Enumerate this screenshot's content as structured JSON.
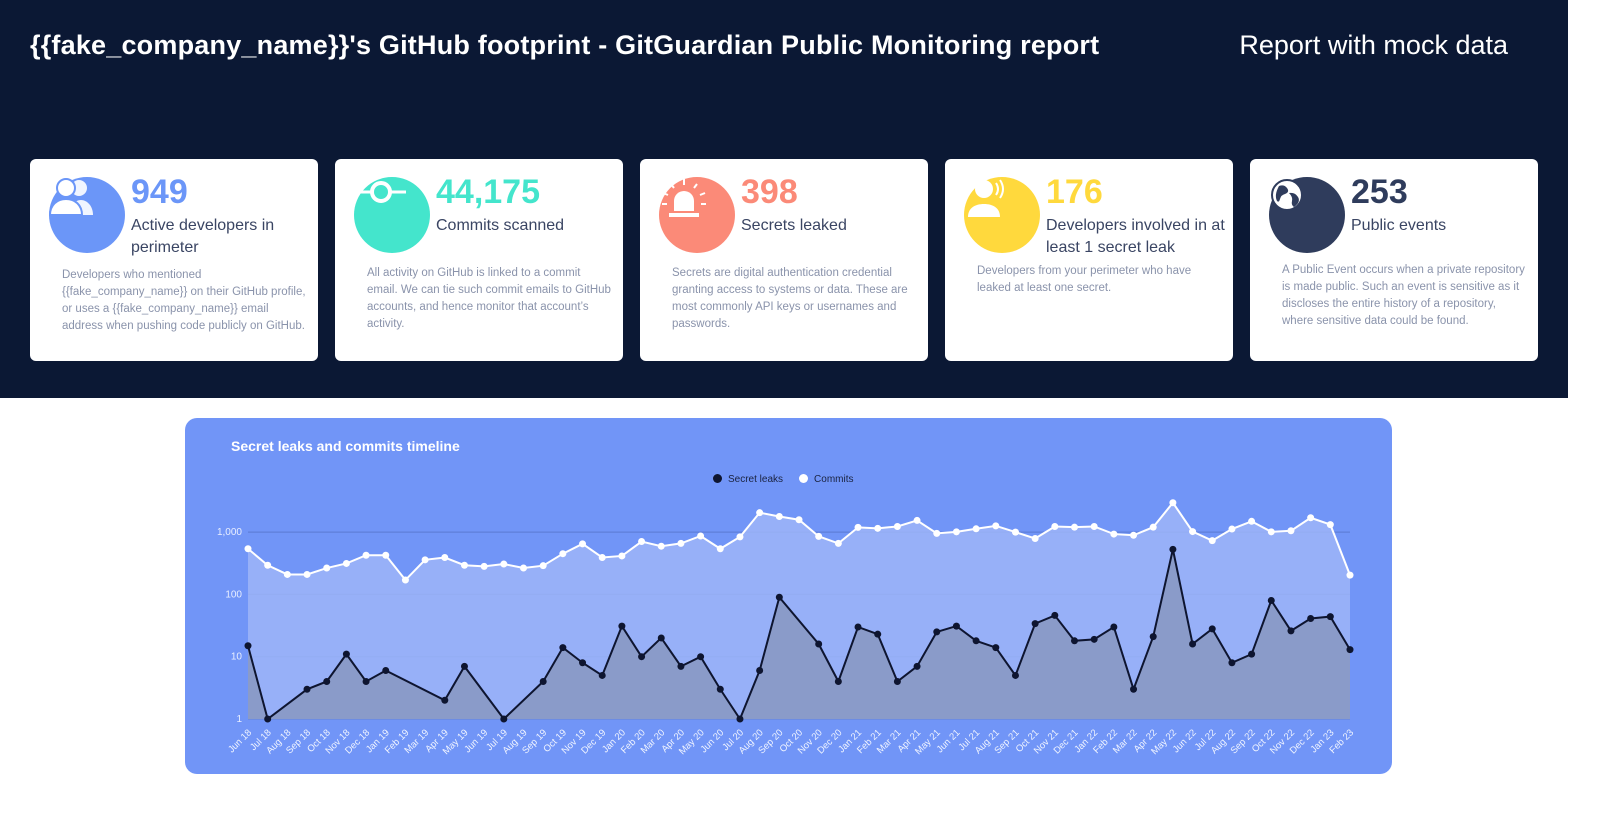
{
  "header": {
    "title": "{{fake_company_name}}'s GitHub footprint - GitGuardian Public Monitoring report",
    "subtitle": "Report with mock data"
  },
  "cards": [
    {
      "icon": "users-icon",
      "color": "#6b96f8",
      "value": "949",
      "label": "Active developers in perimeter",
      "description": "Developers who mentioned {{fake_company_name}} on their GitHub profile, or uses a {{fake_company_name}} email address when pushing code publicly on GitHub."
    },
    {
      "icon": "commit-icon",
      "color": "#44e5cc",
      "value": "44,175",
      "label": "Commits scanned",
      "description": "All activity on GitHub is linked to a commit email. We can tie such commit emails to GitHub accounts, and hence monitor that account’s activity."
    },
    {
      "icon": "alarm-icon",
      "color": "#fb8a78",
      "value": "398",
      "label": "Secrets leaked",
      "description": "Secrets are digital authentication credential granting access to systems or data. These are most commonly API keys or usernames and passwords."
    },
    {
      "icon": "developer-alert-icon",
      "color": "#ffd93d",
      "value": "176",
      "label": "Developers involved in at least 1 secret leak",
      "description": "Developers from your perimeter who have leaked at least one secret."
    },
    {
      "icon": "globe-icon",
      "color": "#2f3c5c",
      "value": "253",
      "label": "Public events",
      "description": "A Public Event occurs when a private repository is made public. Such an event is sensitive as it discloses the entire history of a repository, where sensitive data could be found."
    }
  ],
  "chart_data": {
    "type": "area",
    "title": "Secret leaks and commits timeline",
    "y_scale": "log",
    "ylim": [
      1,
      3000
    ],
    "y_ticks": [
      "1",
      "10",
      "100",
      "1,000"
    ],
    "legend_position": "top",
    "grid": true,
    "categories": [
      "Jun 18",
      "Jul 18",
      "Aug 18",
      "Sep 18",
      "Oct 18",
      "Nov 18",
      "Dec 18",
      "Jan 19",
      "Feb 19",
      "Mar 19",
      "Apr 19",
      "May 19",
      "Jun 19",
      "Jul 19",
      "Aug 19",
      "Sep 19",
      "Oct 19",
      "Nov 19",
      "Dec 19",
      "Jan 20",
      "Feb 20",
      "Mar 20",
      "Apr 20",
      "May 20",
      "Jun 20",
      "Jul 20",
      "Aug 20",
      "Sep 20",
      "Oct 20",
      "Nov 20",
      "Dec 20",
      "Jan 21",
      "Feb 21",
      "Mar 21",
      "Apr 21",
      "May 21",
      "Jun 21",
      "Jul 21",
      "Aug 21",
      "Sep 21",
      "Oct 21",
      "Nov 21",
      "Dec 21",
      "Jan 22",
      "Feb 22",
      "Mar 22",
      "Apr 22",
      "May 22",
      "Jun 22",
      "Jul 22",
      "Aug 22",
      "Sep 22",
      "Oct 22",
      "Nov 22",
      "Dec 22",
      "Jan 23",
      "Feb 23"
    ],
    "series": [
      {
        "name": "Secret leaks",
        "color": "#0e1530",
        "values": [
          15,
          1,
          null,
          3,
          4,
          11,
          4,
          6,
          null,
          null,
          2,
          7,
          null,
          1,
          null,
          4,
          14,
          8,
          5,
          31,
          10,
          20,
          7,
          10,
          3,
          1,
          6,
          90,
          null,
          16,
          4,
          30,
          23,
          4,
          7,
          25,
          31,
          18,
          14,
          5,
          34,
          46,
          18,
          19,
          30,
          3,
          21,
          528,
          16,
          28,
          8,
          11,
          80,
          26,
          41,
          44,
          13
        ]
      },
      {
        "name": "Commits",
        "color": "#ffffff",
        "values": [
          540,
          294,
          209,
          209,
          265,
          314,
          425,
          425,
          170,
          359,
          391,
          294,
          282,
          307,
          265,
          289,
          450,
          648,
          391,
          414,
          706,
          594,
          659,
          866,
          540,
          838,
          2050,
          1780,
          1580,
          855,
          659,
          1190,
          1150,
          1230,
          1540,
          955,
          1010,
          1130,
          1260,
          1000,
          790,
          1230,
          1200,
          1230,
          930,
          890,
          1200,
          2960,
          1020,
          730,
          1120,
          1490,
          1010,
          1050,
          1700,
          1320,
          204
        ]
      }
    ]
  }
}
